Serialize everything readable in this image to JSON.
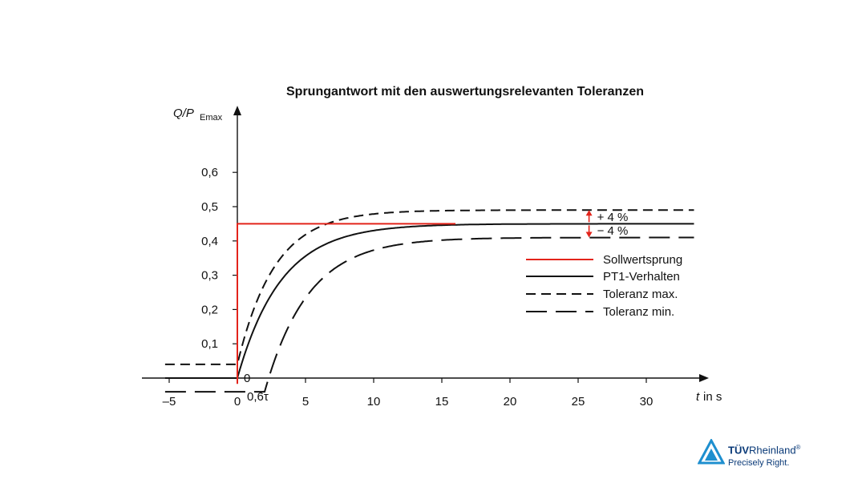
{
  "chart_data": {
    "type": "line",
    "title": "Sprungantwort mit den auswertungsrelevanten Toleranzen",
    "ylabel": "Q/P",
    "ylabel_sub": "Emax",
    "xlabel_var": "t",
    "xlabel_unit": "in s",
    "xlim": [
      -5,
      34
    ],
    "ylim": [
      0,
      0.62
    ],
    "x_ticks": [
      -5,
      0,
      5,
      10,
      15,
      20,
      25,
      30
    ],
    "x_tick_labels": [
      "–5",
      "0",
      "5",
      "10",
      "15",
      "20",
      "25",
      "30"
    ],
    "y_ticks": [
      0.1,
      0.2,
      0.3,
      0.4,
      0.5,
      0.6
    ],
    "y_tick_labels": [
      "0,1",
      "0,2",
      "0,3",
      "0,4",
      "0,5",
      "0,6"
    ],
    "origin_label": "0",
    "delay_label": "0,6τ",
    "delay": 2.0,
    "time_constant": 3.2,
    "setpoint": 0.45,
    "tolerance_plus_label": "+ 4 %",
    "tolerance_minus_label": "− 4 %",
    "grid": false,
    "legend_position": "right",
    "series": [
      {
        "name": "Sollwertsprung",
        "color": "#e3241b",
        "style": "solid",
        "initial": 0.0,
        "final": 0.45
      },
      {
        "name": "PT1-Verhalten",
        "color": "#111111",
        "style": "solid",
        "initial": 0.0,
        "final": 0.45
      },
      {
        "name": "Toleranz max.",
        "color": "#111111",
        "style": "dashed-short",
        "initial": 0.04,
        "final": 0.49
      },
      {
        "name": "Toleranz min.",
        "color": "#111111",
        "style": "dashed-long",
        "initial": -0.04,
        "final": 0.41
      }
    ]
  },
  "logo": {
    "brand_bold": "TÜV",
    "brand_rest": "Rheinland",
    "reg_mark": "®",
    "slogan": "Precisely Right.",
    "color": "#0a3a78"
  }
}
